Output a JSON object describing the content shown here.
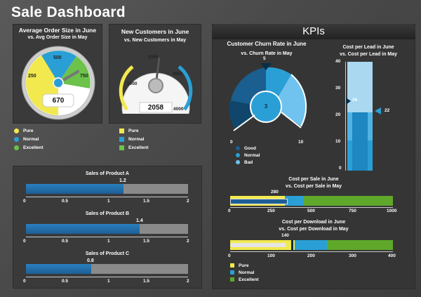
{
  "title": "Sale Dashboard",
  "gauge_order": {
    "title1": "Average Order Size in June",
    "title2": "vs. Avg Order Size in May",
    "ticks": [
      "250",
      "500",
      "750"
    ],
    "value": "670",
    "legend": [
      "Pure",
      "Normal",
      "Excellent"
    ]
  },
  "gauge_customers": {
    "title1": "New Customers in June",
    "title2": "vs. New Customers in May",
    "ticks": [
      "1000",
      "2000",
      "3000",
      "4000"
    ],
    "value": "2058",
    "legend": [
      "Pure",
      "Normal",
      "Excellent"
    ]
  },
  "products": {
    "a_title": "Sales of Product A",
    "a_value": "1.2",
    "b_title": "Sales of Product B",
    "b_value": "1.4",
    "c_title": "Sales of Product C",
    "c_value": "0.8",
    "ticks": [
      "0",
      "0.5",
      "1",
      "1.5",
      "2"
    ]
  },
  "kpis": {
    "header": "KPIs",
    "churn_title1": "Customer Churn Rate in June",
    "churn_title2": "vs. Churn Rate in May",
    "churn_top": "5",
    "churn_value": "3",
    "churn_min": "0",
    "churn_max": "10",
    "churn_legend": [
      "Good",
      "Normal",
      "Bad"
    ],
    "lead_title1": "Cost per Lead in June",
    "lead_title2": "vs. Cost per Lead in May",
    "lead_ticks": [
      "40",
      "30",
      "20",
      "10",
      "0"
    ],
    "lead_marker": "26",
    "lead_value": "22",
    "sale_title1": "Cost per Sale in June",
    "sale_title2": "vs. Cost per Sale in May",
    "sale_value": "280",
    "sale_ticks": [
      "0",
      "250",
      "500",
      "750",
      "1000"
    ],
    "dl_title1": "Cost per Download in June",
    "dl_title2": "vs. Cost per Download in May",
    "dl_value": "140",
    "dl_ticks": [
      "0",
      "100",
      "200",
      "300",
      "400"
    ],
    "legend": [
      "Pure",
      "Normal",
      "Excellent"
    ]
  },
  "colors": {
    "yellow": "#f2e94e",
    "blue": "#2a9fd6",
    "green": "#6cc24a",
    "darkblue": "#1d6fa5"
  }
}
